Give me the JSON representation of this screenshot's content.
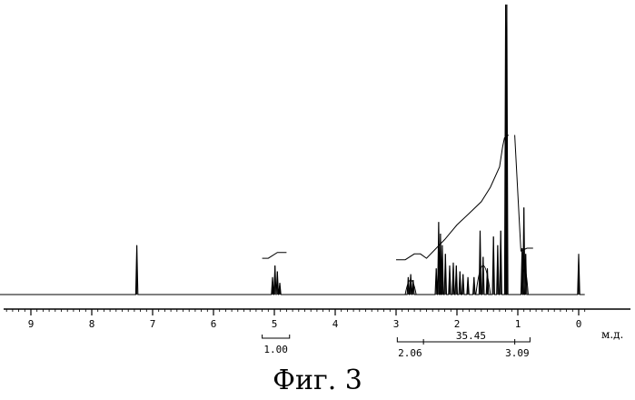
{
  "caption": "Фиг. 3",
  "chart_data": {
    "type": "line",
    "title": "",
    "xlabel": "м.д.",
    "ylabel": "",
    "xlim": [
      10.0,
      -0.1
    ],
    "x_reversed": true,
    "grid": false,
    "x_ticks": [
      9,
      8,
      7,
      6,
      5,
      4,
      3,
      2,
      1,
      0
    ],
    "x_tick_labels": [
      "9",
      "8",
      "7",
      "6",
      "5",
      "4",
      "3",
      "2",
      "1",
      "0"
    ],
    "ylim": [
      0,
      100
    ],
    "series": [
      {
        "peaks": [
          {
            "x": 7.26,
            "y": 17
          },
          {
            "x": 5.03,
            "y": 6
          },
          {
            "x": 4.99,
            "y": 10
          },
          {
            "x": 4.95,
            "y": 8
          },
          {
            "x": 4.91,
            "y": 4
          },
          {
            "x": 2.8,
            "y": 6
          },
          {
            "x": 2.76,
            "y": 7
          },
          {
            "x": 2.72,
            "y": 5
          },
          {
            "x": 2.34,
            "y": 9
          },
          {
            "x": 2.3,
            "y": 25
          },
          {
            "x": 2.27,
            "y": 21
          },
          {
            "x": 2.24,
            "y": 17
          },
          {
            "x": 2.19,
            "y": 14
          },
          {
            "x": 2.12,
            "y": 10
          },
          {
            "x": 2.06,
            "y": 11
          },
          {
            "x": 2.01,
            "y": 10
          },
          {
            "x": 1.95,
            "y": 8
          },
          {
            "x": 1.9,
            "y": 7
          },
          {
            "x": 1.82,
            "y": 6
          },
          {
            "x": 1.72,
            "y": 6
          },
          {
            "x": 1.62,
            "y": 22
          },
          {
            "x": 1.57,
            "y": 13
          },
          {
            "x": 1.5,
            "y": 9
          },
          {
            "x": 1.4,
            "y": 20
          },
          {
            "x": 1.33,
            "y": 17
          },
          {
            "x": 1.28,
            "y": 22
          },
          {
            "x": 1.2,
            "y": 100
          },
          {
            "x": 1.18,
            "y": 100
          },
          {
            "x": 0.93,
            "y": 16
          },
          {
            "x": 0.9,
            "y": 30
          },
          {
            "x": 0.87,
            "y": 14
          },
          {
            "x": 0.0,
            "y": 14
          }
        ]
      }
    ],
    "integrals": [
      {
        "from": 5.2,
        "to": 4.75,
        "value": "1.00"
      },
      {
        "from": 2.98,
        "to": 2.55,
        "value": "2.06"
      },
      {
        "from": 2.55,
        "to": 1.05,
        "value": "35.45"
      },
      {
        "from": 1.05,
        "to": 0.8,
        "value": "3.09"
      }
    ],
    "integral_curve": [
      {
        "x": 5.2,
        "y": 12.5
      },
      {
        "x": 5.1,
        "y": 12.5
      },
      {
        "x": 4.95,
        "y": 14.5
      },
      {
        "x": 4.8,
        "y": 14.5
      },
      {
        "x": 3.0,
        "y": 12.0
      },
      {
        "x": 2.85,
        "y": 12.0
      },
      {
        "x": 2.7,
        "y": 14.0
      },
      {
        "x": 2.6,
        "y": 14.0
      },
      {
        "x": 2.5,
        "y": 12.5
      },
      {
        "x": 2.2,
        "y": 19.0
      },
      {
        "x": 2.0,
        "y": 24.0
      },
      {
        "x": 1.8,
        "y": 28.0
      },
      {
        "x": 1.6,
        "y": 32.0
      },
      {
        "x": 1.45,
        "y": 37.0
      },
      {
        "x": 1.3,
        "y": 44.0
      },
      {
        "x": 1.25,
        "y": 51.0
      },
      {
        "x": 1.22,
        "y": 54.0
      },
      {
        "x": 1.15,
        "y": 55.0
      },
      {
        "x": 1.05,
        "y": 55.0
      },
      {
        "x": 0.95,
        "y": 15.0
      },
      {
        "x": 0.85,
        "y": 16.0
      },
      {
        "x": 0.75,
        "y": 16.0
      }
    ]
  }
}
